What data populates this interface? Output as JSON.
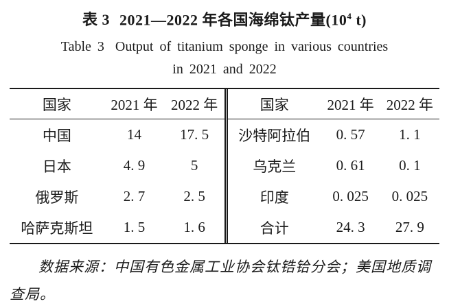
{
  "title": {
    "cn_label": "表 3",
    "cn_main": "2021—2022 年各国海绵钛产量(10",
    "cn_sup": "4",
    "cn_tail": " t)",
    "en_label": "Table 3",
    "en_text": "Output of titanium sponge in various countries",
    "en_line2": "in 2021 and 2022"
  },
  "table": {
    "left": {
      "headers": [
        "国家",
        "2021 年",
        "2022 年"
      ],
      "rows": [
        [
          "中国",
          "14",
          "17. 5"
        ],
        [
          "日本",
          "4. 9",
          "5"
        ],
        [
          "俄罗斯",
          "2. 7",
          "2. 5"
        ],
        [
          "哈萨克斯坦",
          "1. 5",
          "1. 6"
        ]
      ]
    },
    "right": {
      "headers": [
        "国家",
        "2021 年",
        "2022 年"
      ],
      "rows": [
        [
          "沙特阿拉伯",
          "0. 57",
          "1. 1"
        ],
        [
          "乌克兰",
          "0. 61",
          "0. 1"
        ],
        [
          "印度",
          "0. 025",
          "0. 025"
        ],
        [
          "合计",
          "24. 3",
          "27. 9"
        ]
      ]
    }
  },
  "source_note": "数据来源：中国有色金属工业协会钛锆铪分会；美国地质调查局。",
  "colors": {
    "text": "#1a1a1a",
    "background": "#ffffff",
    "rule": "#1a1a1a"
  }
}
